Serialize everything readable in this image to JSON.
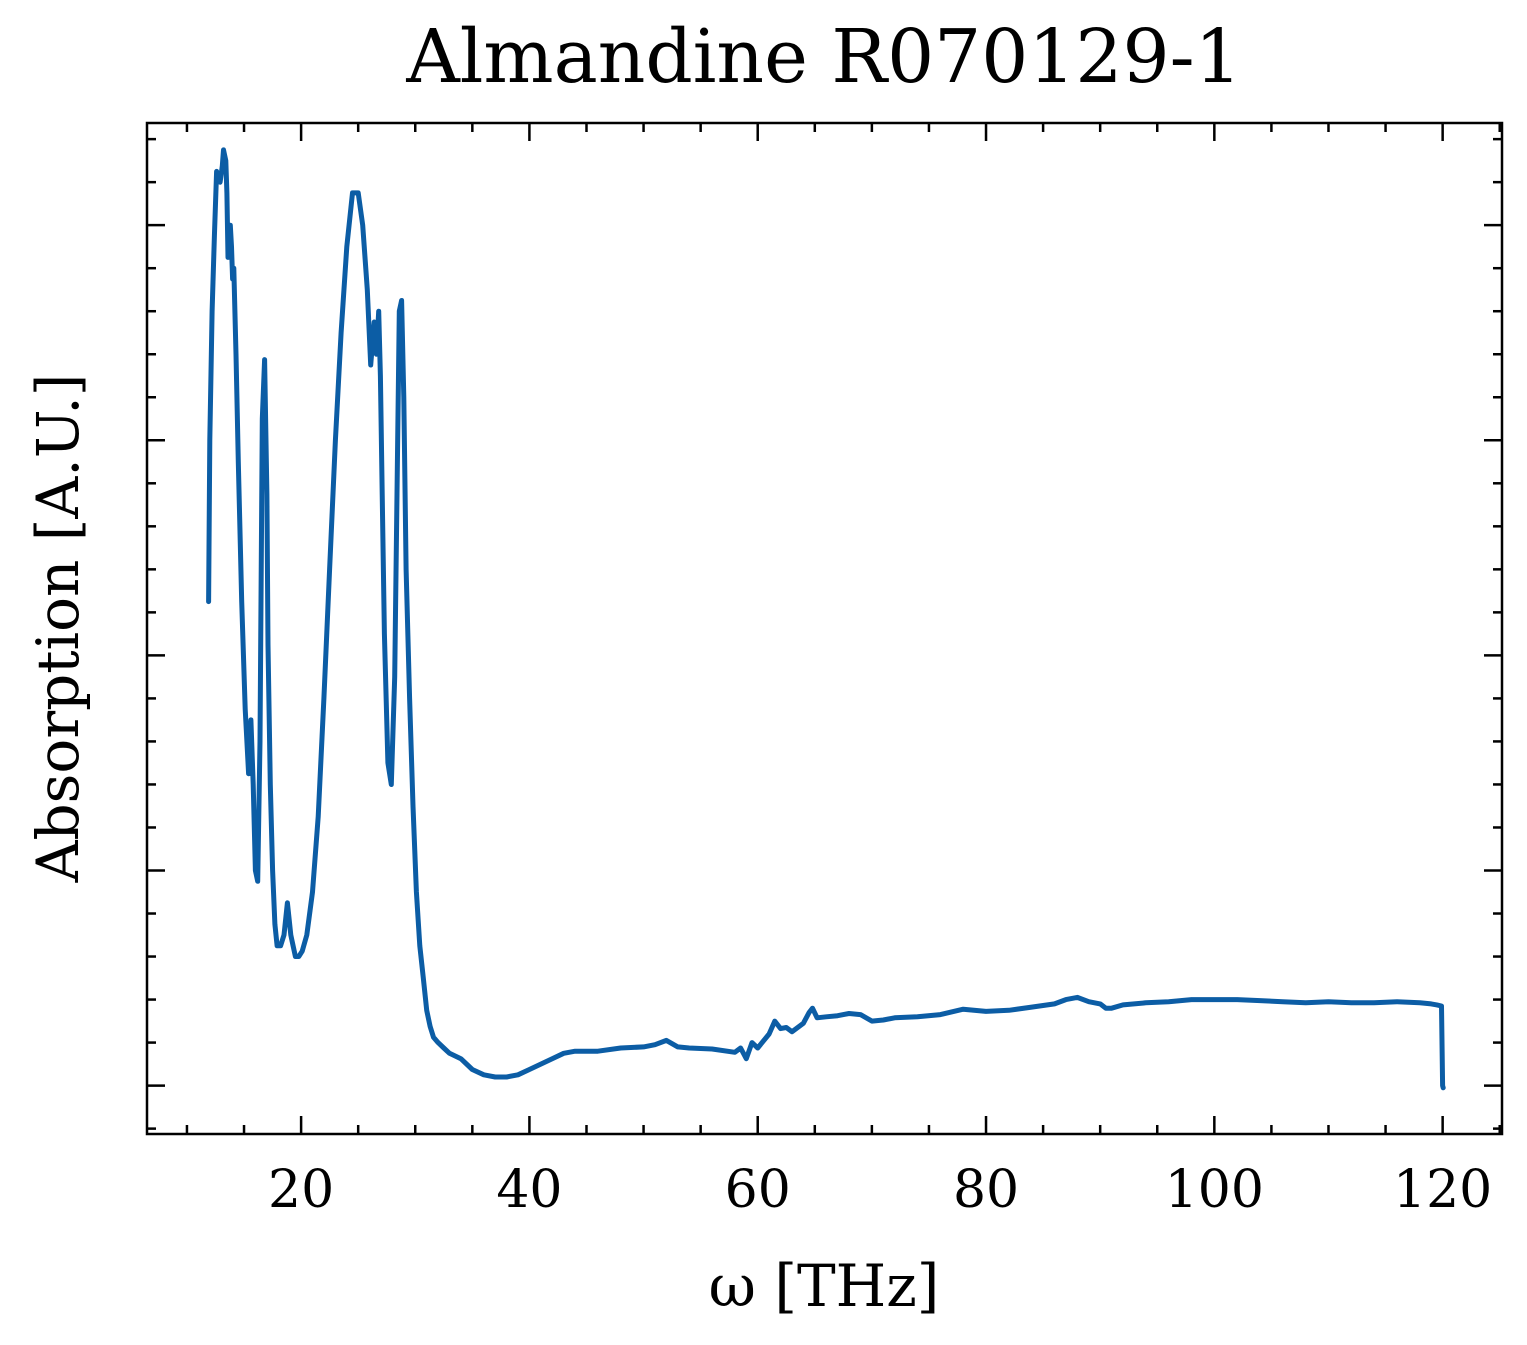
{
  "chart_data": {
    "type": "line",
    "title": "Almandine R070129-1",
    "xlabel": "ω [THz]",
    "ylabel": "Absorption [A.U.]",
    "xlim": [
      6.5,
      125.2
    ],
    "ylim": [
      -0.045,
      0.895
    ],
    "x_ticks": [
      20,
      40,
      60,
      80,
      100,
      120
    ],
    "x_tick_labels": [
      "20",
      "40",
      "60",
      "80",
      "100",
      "120"
    ],
    "y_ticks": [
      0.0,
      0.2,
      0.4,
      0.6,
      0.8
    ],
    "y_tick_labels": [],
    "grid": false,
    "legend": "none",
    "series_color": "#0C5DA5",
    "series": [
      {
        "x": [
          11.9,
          12.0,
          12.2,
          12.4,
          12.6,
          12.9,
          13.1,
          13.2,
          13.4,
          13.5,
          13.6,
          13.8,
          13.9,
          14.0,
          14.1,
          14.3,
          14.5,
          14.8,
          15.1,
          15.4,
          15.6,
          15.8,
          16.0,
          16.2,
          16.4,
          16.6,
          16.8,
          17.0,
          17.1,
          17.3,
          17.5,
          17.7,
          17.9,
          18.2,
          18.5,
          18.8,
          19.1,
          19.3,
          19.5,
          19.8,
          20.1,
          20.5,
          21.0,
          21.5,
          22.0,
          22.5,
          23.0,
          23.5,
          24.0,
          24.5,
          25.0,
          25.4,
          25.8,
          26.1,
          26.4,
          26.6,
          26.8,
          26.95,
          27.1,
          27.3,
          27.6,
          27.9,
          28.2,
          28.4,
          28.6,
          28.8,
          29.0,
          29.2,
          29.5,
          29.8,
          30.1,
          30.4,
          30.7,
          31.0,
          31.3,
          31.6,
          32.0,
          32.5,
          33.0,
          34.0,
          35.0,
          36.0,
          37.0,
          38.0,
          39.0,
          40.0,
          41.0,
          42.0,
          43.0,
          44.0,
          46.0,
          48.0,
          50.0,
          51.0,
          52.0,
          53.0,
          54.0,
          56.0,
          58.0,
          58.5,
          59.0,
          59.5,
          60.0,
          61.0,
          61.5,
          62.0,
          62.5,
          63.0,
          64.0,
          64.5,
          64.8,
          65.2,
          66.0,
          67.0,
          68.0,
          69.0,
          70.0,
          71.0,
          72.0,
          74.0,
          76.0,
          78.0,
          80.0,
          82.0,
          84.0,
          86.0,
          87.0,
          88.0,
          89.0,
          90.0,
          90.5,
          91.0,
          92.0,
          94.0,
          96.0,
          98.0,
          100.0,
          102.0,
          104.0,
          106.0,
          108.0,
          110.0,
          112.0,
          114.0,
          116.0,
          118.0,
          119.0,
          119.5,
          119.9,
          120.0,
          120.05
        ],
        "y": [
          0.45,
          0.6,
          0.72,
          0.79,
          0.85,
          0.84,
          0.855,
          0.87,
          0.86,
          0.83,
          0.77,
          0.8,
          0.78,
          0.75,
          0.76,
          0.68,
          0.58,
          0.45,
          0.35,
          0.29,
          0.34,
          0.28,
          0.2,
          0.19,
          0.32,
          0.62,
          0.675,
          0.55,
          0.41,
          0.28,
          0.2,
          0.15,
          0.13,
          0.13,
          0.14,
          0.17,
          0.14,
          0.13,
          0.12,
          0.12,
          0.125,
          0.14,
          0.18,
          0.25,
          0.36,
          0.48,
          0.6,
          0.7,
          0.78,
          0.83,
          0.83,
          0.8,
          0.74,
          0.67,
          0.71,
          0.68,
          0.72,
          0.66,
          0.55,
          0.42,
          0.3,
          0.28,
          0.38,
          0.55,
          0.72,
          0.73,
          0.64,
          0.48,
          0.36,
          0.26,
          0.18,
          0.13,
          0.1,
          0.07,
          0.055,
          0.045,
          0.04,
          0.035,
          0.03,
          0.025,
          0.015,
          0.01,
          0.008,
          0.008,
          0.01,
          0.015,
          0.02,
          0.025,
          0.03,
          0.032,
          0.032,
          0.035,
          0.036,
          0.038,
          0.042,
          0.036,
          0.035,
          0.034,
          0.031,
          0.035,
          0.025,
          0.04,
          0.035,
          0.048,
          0.06,
          0.053,
          0.054,
          0.05,
          0.058,
          0.068,
          0.072,
          0.063,
          0.064,
          0.065,
          0.067,
          0.066,
          0.06,
          0.061,
          0.063,
          0.064,
          0.066,
          0.071,
          0.069,
          0.07,
          0.073,
          0.076,
          0.08,
          0.082,
          0.078,
          0.076,
          0.072,
          0.072,
          0.075,
          0.077,
          0.078,
          0.08,
          0.08,
          0.08,
          0.079,
          0.078,
          0.077,
          0.078,
          0.077,
          0.077,
          0.078,
          0.077,
          0.076,
          0.075,
          0.074,
          0.0,
          -0.002
        ]
      }
    ]
  }
}
